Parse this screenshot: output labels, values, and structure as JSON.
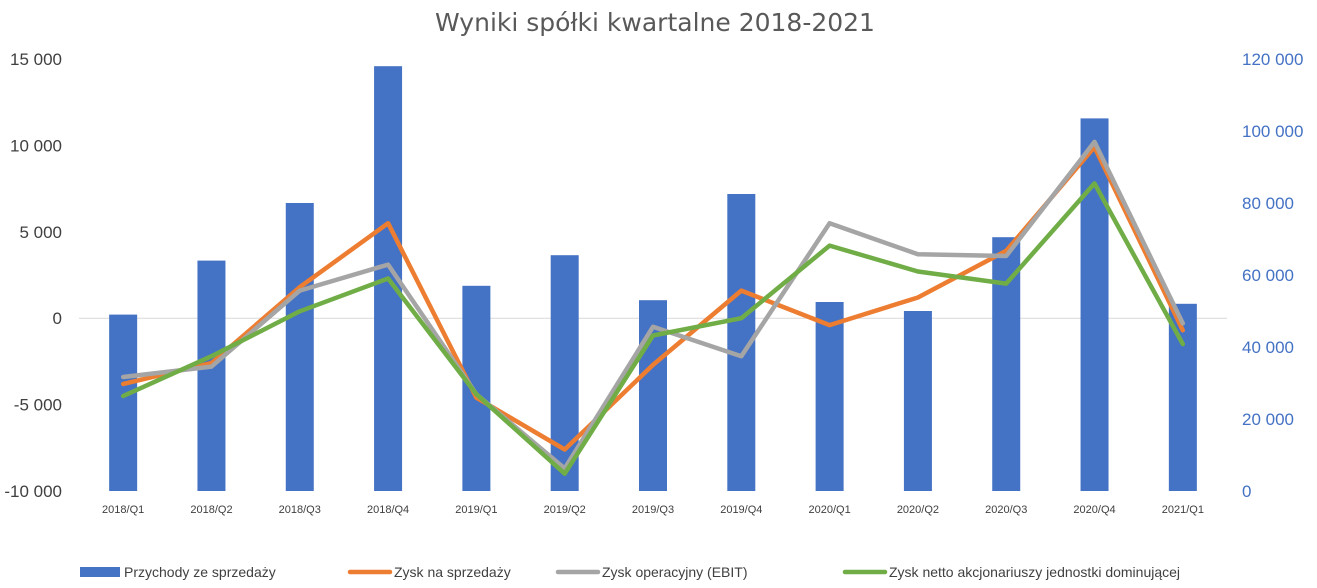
{
  "chart_data": {
    "type": "bar",
    "title": "Wyniki spółki kwartalne 2018-2021",
    "categories": [
      "2018/Q1",
      "2018/Q2",
      "2018/Q3",
      "2018/Q4",
      "2019/Q1",
      "2019/Q2",
      "2019/Q3",
      "2019/Q4",
      "2020/Q1",
      "2020/Q2",
      "2020/Q3",
      "2020/Q4",
      "2021/Q1"
    ],
    "left_axis": {
      "range": [
        -10000,
        15000
      ],
      "ticks": [
        -10000,
        -5000,
        0,
        5000,
        10000,
        15000
      ],
      "tick_labels": [
        "-10 000",
        "-5 000",
        "0",
        "5 000",
        "10 000",
        "15 000"
      ]
    },
    "right_axis": {
      "range": [
        0,
        120000
      ],
      "ticks": [
        0,
        20000,
        40000,
        60000,
        80000,
        100000,
        120000
      ],
      "tick_labels": [
        "0",
        "20 000",
        "40 000",
        "60 000",
        "80 000",
        "100 000",
        "120 000"
      ]
    },
    "series": [
      {
        "name": "Przychody ze sprzedaży",
        "type": "bar",
        "axis": "right",
        "color": "#4472C4",
        "values": [
          49000,
          64000,
          80000,
          118000,
          57000,
          65500,
          53000,
          82500,
          52500,
          50000,
          70500,
          103500,
          52000
        ]
      },
      {
        "name": "Zysk na sprzedaży",
        "type": "line",
        "axis": "left",
        "color": "#ED7D31",
        "values": [
          -3800,
          -2600,
          1800,
          5500,
          -4600,
          -7600,
          -2700,
          1600,
          -400,
          1200,
          3900,
          9900,
          -700
        ]
      },
      {
        "name": "Zysk operacyjny (EBIT)",
        "type": "line",
        "axis": "left",
        "color": "#A5A5A5",
        "values": [
          -3400,
          -2800,
          1600,
          3100,
          -4400,
          -8700,
          -500,
          -2200,
          5500,
          3700,
          3600,
          10200,
          -300
        ]
      },
      {
        "name": "Zysk netto akcjonariuszy jednostki dominującej",
        "type": "line",
        "axis": "left",
        "color": "#70AD47",
        "values": [
          -4500,
          -2200,
          400,
          2300,
          -4400,
          -9000,
          -1000,
          0,
          4200,
          2700,
          2000,
          7800,
          -1500
        ]
      }
    ],
    "legend_position": "bottom",
    "grid": "zero-line only"
  }
}
